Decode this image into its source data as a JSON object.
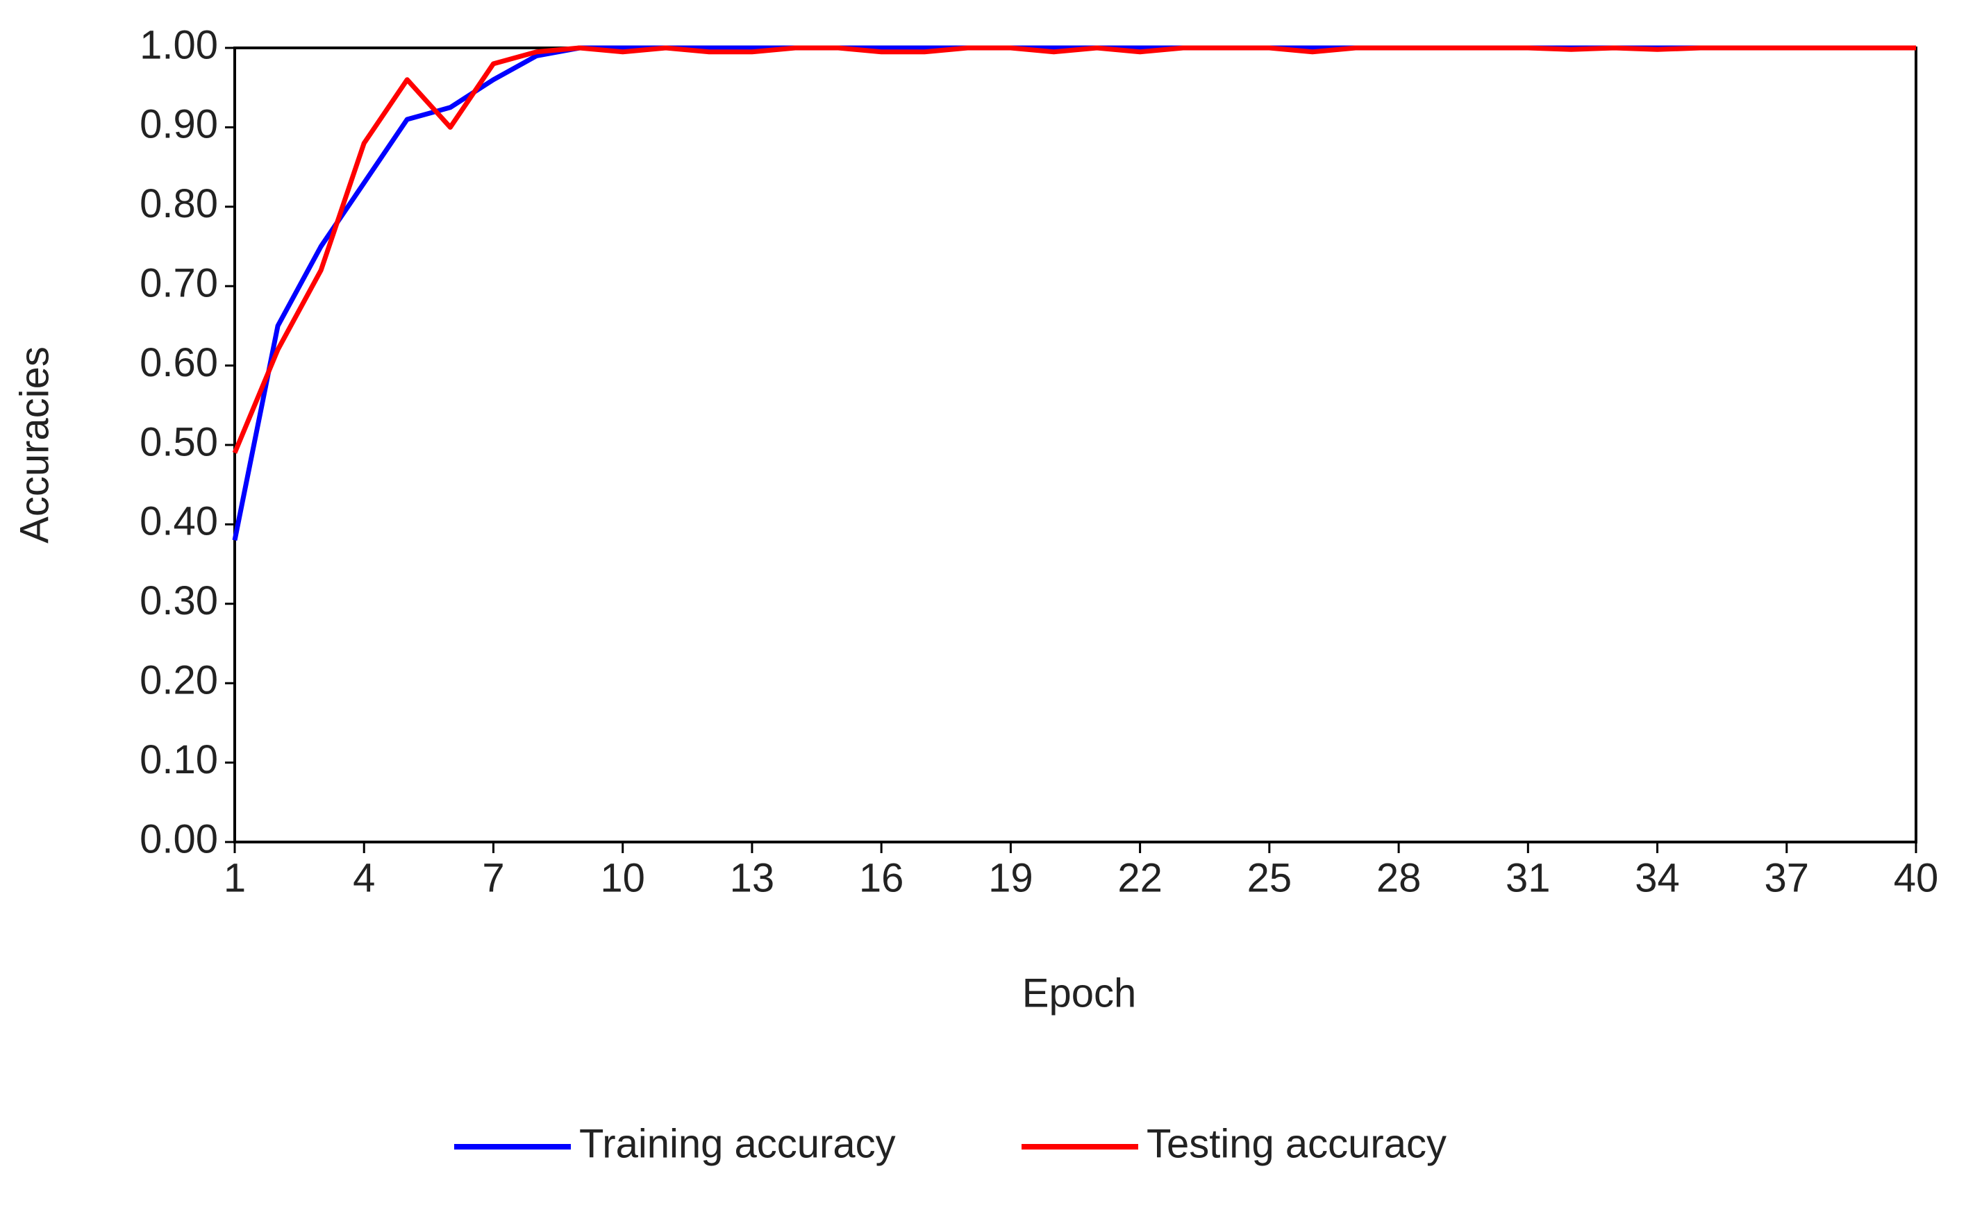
{
  "chart_data": {
    "type": "line",
    "x": [
      1,
      2,
      3,
      4,
      5,
      6,
      7,
      8,
      9,
      10,
      11,
      12,
      13,
      14,
      15,
      16,
      17,
      18,
      19,
      20,
      21,
      22,
      23,
      24,
      25,
      26,
      27,
      28,
      29,
      30,
      31,
      32,
      33,
      34,
      35,
      36,
      37,
      38,
      39,
      40
    ],
    "series": [
      {
        "name": "Training accuracy",
        "color": "#0000ff",
        "values": [
          0.38,
          0.65,
          0.75,
          0.83,
          0.91,
          0.925,
          0.96,
          0.99,
          1,
          1,
          1,
          1,
          1,
          1,
          1,
          1,
          1,
          1,
          1,
          1,
          1,
          1,
          1,
          1,
          1,
          1,
          1,
          1,
          1,
          1,
          1,
          1,
          1,
          1,
          1,
          1,
          1,
          1,
          1,
          1
        ]
      },
      {
        "name": "Testing accuracy",
        "color": "#ff0000",
        "values": [
          0.49,
          0.62,
          0.72,
          0.88,
          0.96,
          0.9,
          0.98,
          0.995,
          1,
          0.995,
          1,
          0.995,
          0.995,
          1,
          1,
          0.995,
          0.995,
          1,
          1,
          0.995,
          1,
          0.995,
          1,
          1,
          1,
          0.995,
          1,
          1,
          1,
          1,
          1,
          0.998,
          1,
          0.998,
          1,
          1,
          1,
          1,
          1,
          1
        ]
      }
    ],
    "x_label": "Epoch",
    "y_label": "Accuracies",
    "xlim": [
      1,
      40
    ],
    "xticks": [
      1,
      4,
      7,
      10,
      13,
      16,
      19,
      22,
      25,
      28,
      31,
      34,
      37,
      40
    ],
    "ylim": [
      0,
      1
    ],
    "yticks": [
      {
        "value": 0,
        "label": "0.00"
      },
      {
        "value": 0.1,
        "label": "0.10"
      },
      {
        "value": 0.2,
        "label": "0.20"
      },
      {
        "value": 0.3,
        "label": "0.30"
      },
      {
        "value": 0.4,
        "label": "0.40"
      },
      {
        "value": 0.5,
        "label": "0.50"
      },
      {
        "value": 0.6,
        "label": "0.60"
      },
      {
        "value": 0.7,
        "label": "0.70"
      },
      {
        "value": 0.8,
        "label": "0.80"
      },
      {
        "value": 0.9,
        "label": "0.90"
      },
      {
        "value": 1,
        "label": "1.00"
      }
    ],
    "legend": "bottom"
  }
}
